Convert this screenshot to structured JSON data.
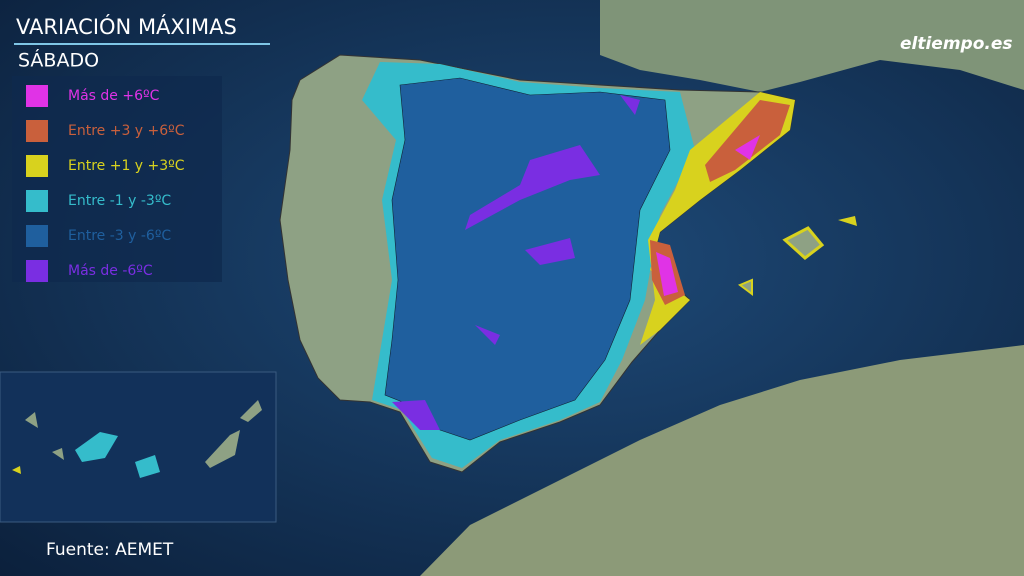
{
  "header": {
    "title": "VARIACIÓN MÁXIMAS",
    "subtitle": "SÁBADO"
  },
  "logo": "eltiempo.es",
  "legend": [
    {
      "label": "Más de +6ºC",
      "color": "#e033e6"
    },
    {
      "label": "Entre +3 y +6ºC",
      "color": "#c9603c"
    },
    {
      "label": "Entre +1 y +3ºC",
      "color": "#d8d21e"
    },
    {
      "label": "Entre -1 y -3ºC",
      "color": "#35bccb"
    },
    {
      "label": "Entre -3 y -6ºC",
      "color": "#1f5f9e"
    },
    {
      "label": "Más de -6ºC",
      "color": "#7a2ee2"
    }
  ],
  "source": "Fuente: AEMET"
}
